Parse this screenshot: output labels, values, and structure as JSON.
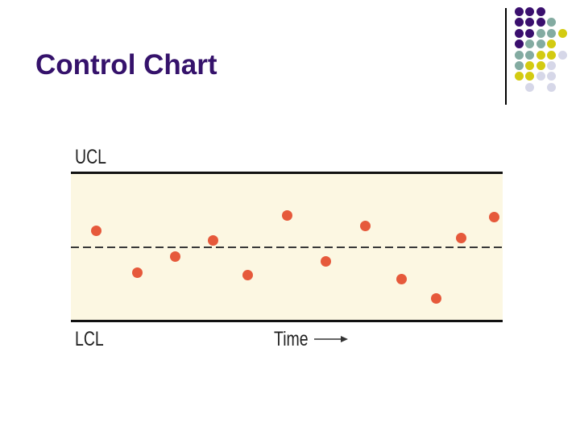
{
  "title": {
    "text": "Control Chart",
    "color": "#35126B"
  },
  "decoration": {
    "separator_color": "#000000",
    "colors": {
      "purple": "#3A0F6E",
      "teal": "#83ABA1",
      "yellow": "#D3CB11",
      "lavender": "#D6D7E8"
    },
    "grid": [
      [
        "purple",
        "purple",
        "purple",
        null,
        null
      ],
      [
        "purple",
        "purple",
        "purple",
        "teal",
        null
      ],
      [
        "purple",
        "purple",
        "teal",
        "teal",
        "yellow"
      ],
      [
        "purple",
        "teal",
        "teal",
        "yellow",
        null
      ],
      [
        "teal",
        "teal",
        "yellow",
        "yellow",
        "lavender"
      ],
      [
        "teal",
        "yellow",
        "yellow",
        "lavender",
        null
      ],
      [
        "yellow",
        "yellow",
        "lavender",
        "lavender",
        null
      ],
      [
        null,
        "lavender",
        null,
        "lavender",
        null
      ]
    ]
  },
  "chart_data": {
    "type": "scatter",
    "title": "Control Chart",
    "description": "Schematic process control chart: sample observations vary randomly about the dashed center line and stay within the upper and lower control limits",
    "upper_limit_label": "UCL",
    "lower_limit_label": "LCL",
    "xlabel": "Time",
    "x_axis_arrow": true,
    "center_line_style": "dashed",
    "center_line_value": 0,
    "ylim": [
      -1,
      1
    ],
    "grid": false,
    "legend": false,
    "plot_background": "#FCF7E2",
    "limit_line_color": "#111111",
    "center_line_color": "#383838",
    "label_color": "#222222",
    "series": [
      {
        "name": "sample-observations",
        "marker": "circle",
        "color": "#E6593B",
        "points": [
          {
            "x_frac": 0.058,
            "dev": 0.22
          },
          {
            "x_frac": 0.153,
            "dev": -0.34
          },
          {
            "x_frac": 0.241,
            "dev": -0.12
          },
          {
            "x_frac": 0.329,
            "dev": 0.09
          },
          {
            "x_frac": 0.409,
            "dev": -0.37
          },
          {
            "x_frac": 0.501,
            "dev": 0.43
          },
          {
            "x_frac": 0.591,
            "dev": -0.19
          },
          {
            "x_frac": 0.682,
            "dev": 0.29
          },
          {
            "x_frac": 0.766,
            "dev": -0.43
          },
          {
            "x_frac": 0.847,
            "dev": -0.69
          },
          {
            "x_frac": 0.903,
            "dev": 0.12
          },
          {
            "x_frac": 0.981,
            "dev": 0.41
          }
        ]
      }
    ]
  }
}
